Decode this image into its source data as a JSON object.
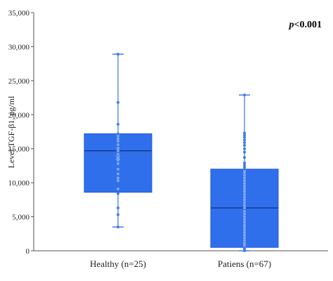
{
  "chart_data": {
    "type": "box",
    "ylabel": "Level TGF-β1, pg/ml",
    "ylim": [
      0,
      35000
    ],
    "yticks": [
      0,
      5000,
      10000,
      15000,
      20000,
      25000,
      30000,
      35000
    ],
    "ytick_labels": [
      "0",
      "5,000",
      "10,000",
      "15,000",
      "20,000",
      "25,000",
      "30,000",
      "35,000"
    ],
    "grid": false,
    "annotation": {
      "symbol": "p",
      "rest": "<0.001",
      "placement": "top-right"
    },
    "colors": {
      "box_fill": "#2f6fec",
      "box_edge": "#1a57d6",
      "point": "#3d7cf2",
      "median": "#10307a"
    },
    "groups": [
      {
        "name": "Healthy (n=25)",
        "whisker_low": 3500,
        "q1": 8600,
        "median": 14700,
        "q3": 17200,
        "whisker_high": 28900,
        "mean": 13700,
        "points": [
          3500,
          5300,
          6300,
          8400,
          9100,
          10300,
          10700,
          11300,
          12000,
          12800,
          13300,
          13700,
          14200,
          14700,
          15100,
          15600,
          16100,
          16500,
          16900,
          17200,
          18600,
          21800,
          28900
        ]
      },
      {
        "name": "Patiens (n=67)",
        "whisker_low": 0,
        "q1": 500,
        "median": 6300,
        "q3": 12000,
        "whisker_high": 22900,
        "points": [
          0,
          150,
          300,
          500,
          800,
          1100,
          1500,
          1900,
          2300,
          2700,
          3100,
          3500,
          3800,
          4200,
          4600,
          5000,
          5400,
          5800,
          6300,
          6700,
          7100,
          7500,
          7900,
          8300,
          8700,
          9100,
          9500,
          9900,
          10300,
          10700,
          11100,
          11500,
          11800,
          12000,
          12300,
          12600,
          12900,
          13700,
          14500,
          15000,
          15500,
          15900,
          16300,
          16700,
          17000,
          17300,
          22900
        ]
      }
    ]
  }
}
